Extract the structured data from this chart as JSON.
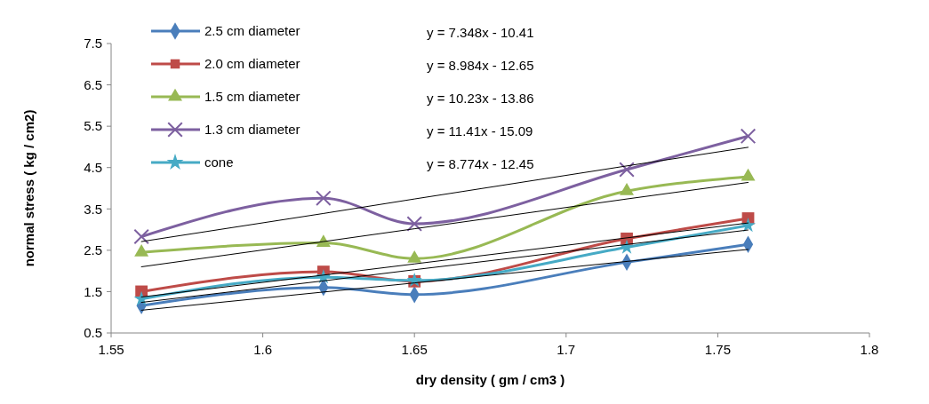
{
  "chart_data": {
    "type": "line",
    "xlabel": "dry density ( gm / cm3 )",
    "ylabel": "normal stress ( kg / cm2)",
    "x": [
      1.56,
      1.62,
      1.65,
      1.72,
      1.76
    ],
    "xlim": [
      1.55,
      1.8
    ],
    "xticks": [
      1.55,
      1.6,
      1.65,
      1.7,
      1.75,
      1.8
    ],
    "ylim": [
      0.5,
      7.5
    ],
    "yticks": [
      0.5,
      1.5,
      2.5,
      3.5,
      4.5,
      5.5,
      6.5,
      7.5
    ],
    "grid": false,
    "legend": "top left",
    "line_style": "solid",
    "series": [
      {
        "name": "2.5 cm diameter",
        "color": "#4a7ebb",
        "marker": "diamond",
        "values": [
          1.16,
          1.6,
          1.43,
          2.21,
          2.64
        ]
      },
      {
        "name": "2.0 cm diameter",
        "color": "#be4b48",
        "marker": "square",
        "values": [
          1.5,
          1.98,
          1.75,
          2.78,
          3.27
        ]
      },
      {
        "name": "1.5 cm diameter",
        "color": "#98b954",
        "marker": "triangle",
        "values": [
          2.45,
          2.68,
          2.3,
          3.93,
          4.28
        ]
      },
      {
        "name": "1.3 cm diameter",
        "color": "#7d60a0",
        "marker": "cross",
        "values": [
          2.83,
          3.76,
          3.14,
          4.45,
          5.26
        ]
      },
      {
        "name": "cone",
        "color": "#46aac5",
        "marker": "star",
        "values": [
          1.32,
          1.85,
          1.77,
          2.57,
          3.1
        ]
      },
      {
        "color": "#000000",
        "marker": "none",
        "values": [
          1.05,
          1.49,
          1.71,
          2.23,
          2.52
        ]
      },
      {
        "color": "#000000",
        "marker": "none",
        "values": [
          1.37,
          1.9,
          2.17,
          2.8,
          3.16
        ]
      },
      {
        "color": "#000000",
        "marker": "none",
        "values": [
          2.1,
          2.71,
          3.02,
          3.74,
          4.14
        ]
      },
      {
        "color": "#000000",
        "marker": "none",
        "values": [
          2.71,
          3.39,
          3.74,
          4.54,
          4.99
        ]
      },
      {
        "color": "#000000",
        "marker": "none",
        "values": [
          1.24,
          1.76,
          2.03,
          2.64,
          2.99
        ]
      }
    ],
    "annotations": [
      "y = 7.348x - 10.41",
      "y = 8.984x - 12.65",
      "y = 10.23x - 13.86",
      "y = 11.41x - 15.09",
      "y = 8.774x - 12.45"
    ]
  }
}
